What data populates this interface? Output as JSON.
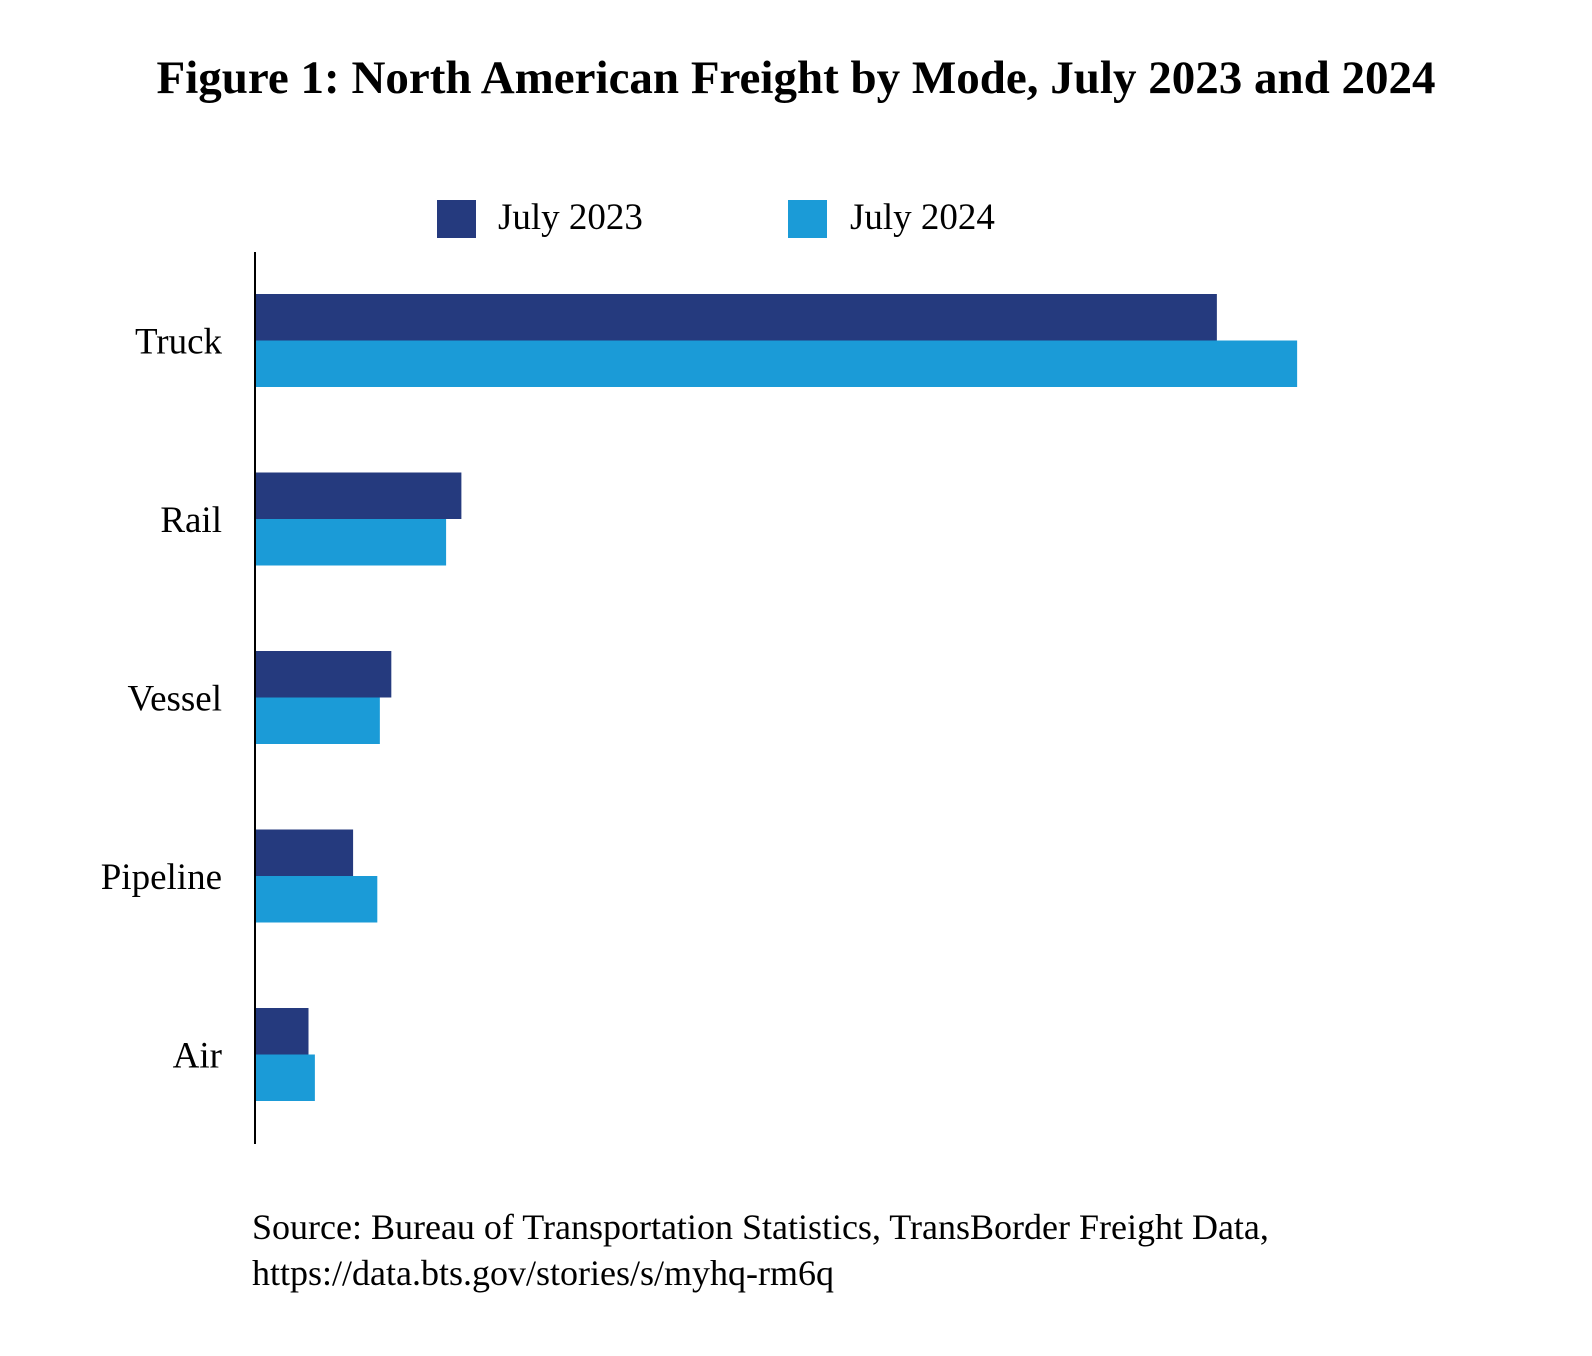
{
  "chart_data": {
    "type": "bar",
    "orientation": "horizontal",
    "title": "Figure 1: North American Freight by Mode, July 2023 and 2024",
    "categories": [
      "Truck",
      "Rail",
      "Vessel",
      "Pipeline",
      "Air"
    ],
    "series": [
      {
        "name": "July 2023",
        "color": "#253A7E",
        "values": [
          75.5,
          16.2,
          10.7,
          7.7,
          4.2
        ]
      },
      {
        "name": "July 2024",
        "color": "#1B9BD7",
        "values": [
          81.8,
          15.0,
          9.8,
          9.6,
          4.7
        ]
      }
    ],
    "xlim": [
      0,
      100
    ],
    "xlabel": "",
    "ylabel": "",
    "grid": false,
    "legend_position": "top"
  },
  "source": {
    "line1": "Source: Bureau of Transportation Statistics, TransBorder Freight Data,",
    "line2": "https://data.bts.gov/stories/s/myhq-rm6q"
  }
}
